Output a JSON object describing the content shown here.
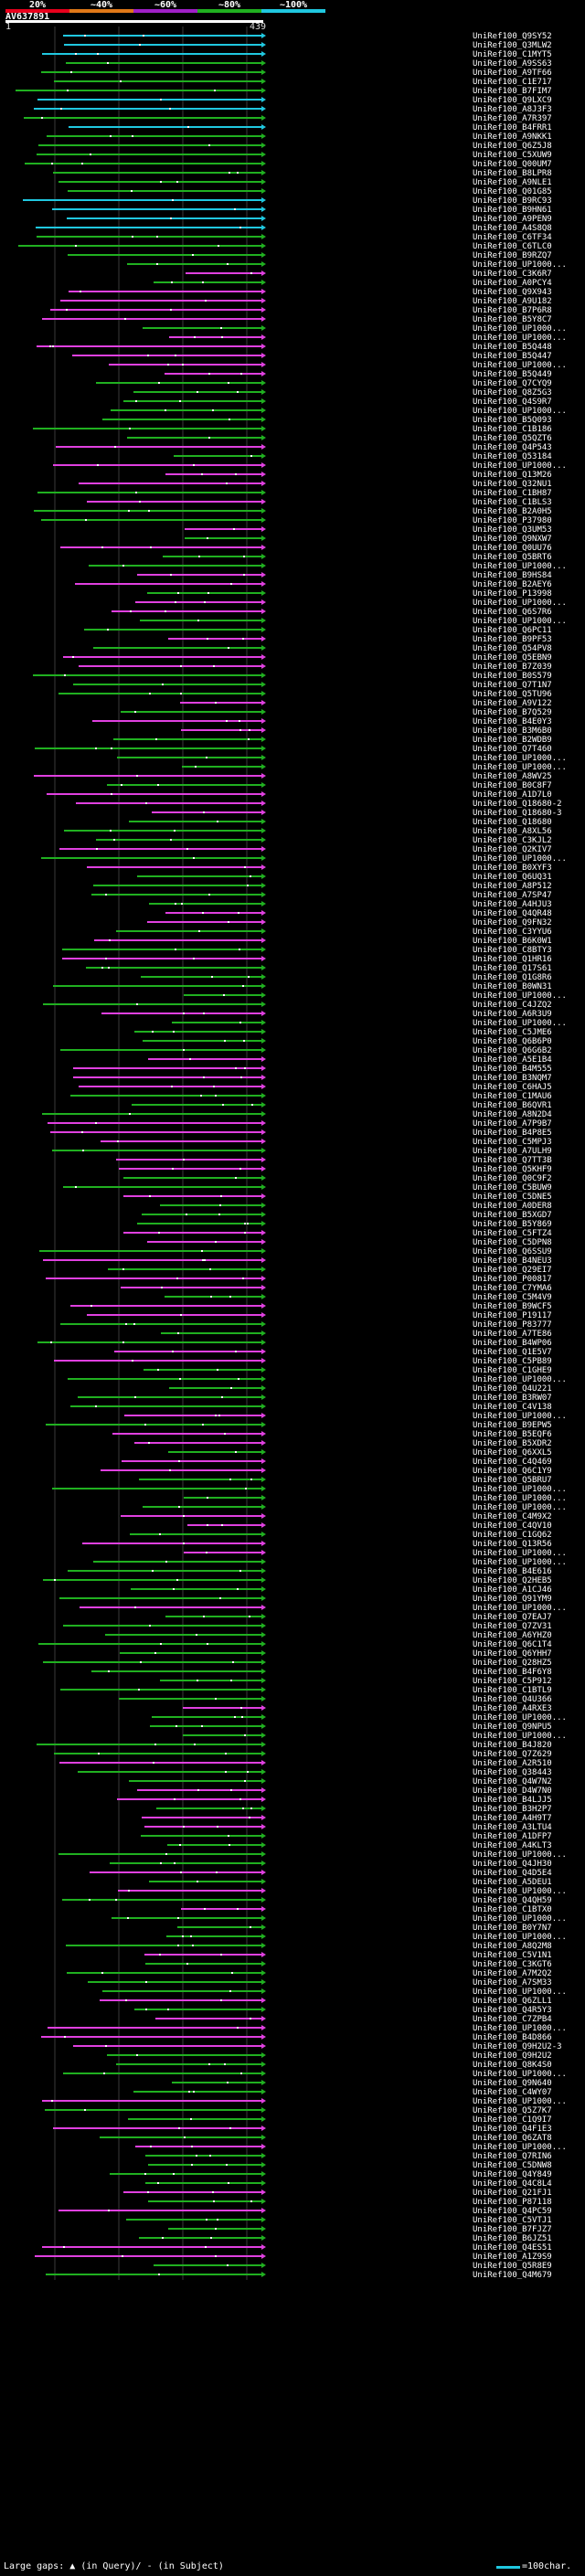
{
  "header": {
    "query_id": "AV637891",
    "axis_start": "1",
    "query_length": "439",
    "color_scale": [
      {
        "label": "20%",
        "color": "#e8001c"
      },
      {
        "label": "~40%",
        "color": "#e07818"
      },
      {
        "label": "~60%",
        "color": "#a020c8"
      },
      {
        "label": "~80%",
        "color": "#20b020"
      },
      {
        "label": "~100%",
        "color": "#20c8e0"
      }
    ]
  },
  "colors": {
    "bar_colors": {
      "cyan": "#20c8e0",
      "green": "#20b020",
      "magenta": "#e040e0"
    },
    "dot_color": "#ffffff",
    "grid_color": "#3a3a3a",
    "query_bar_color": "#ffffff"
  },
  "hit_labels": [
    "UniRef100_Q9SY52",
    "UniRef100_Q3MLW2",
    "UniRef100_C1MYT5",
    "UniRef100_A9SS63",
    "UniRef100_A9TF66",
    "UniRef100_C1E717",
    "UniRef100_B7FIM7",
    "UniRef100_Q9LXC9",
    "UniRef100_A8J3F3",
    "UniRef100_A7R397",
    "UniRef100_B4FRR1",
    "UniRef100_A9NKK1",
    "UniRef100_Q6Z5J8",
    "UniRef100_C5XUW9",
    "UniRef100_Q00UM7",
    "UniRef100_B8LPR8",
    "UniRef100_A9NLE1",
    "UniRef100_Q01G85",
    "UniRef100_B9RC93",
    "UniRef100_B9HN61",
    "UniRef100_A9PEN9",
    "UniRef100_A4S8Q8",
    "UniRef100_C6TF34",
    "UniRef100_C6TLC0",
    "UniRef100_B9RZQ7",
    "UniRef100_UP1000...",
    "UniRef100_C3K6R7",
    "UniRef100_A0PCY4",
    "UniRef100_Q9X943",
    "UniRef100_A9U182",
    "UniRef100_B7P6R8",
    "UniRef100_B5Y8C7",
    "UniRef100_UP1000...",
    "UniRef100_UP1000...",
    "UniRef100_B5Q448",
    "UniRef100_B5Q447",
    "UniRef100_UP1000...",
    "UniRef100_B5Q449",
    "UniRef100_Q7CYQ9",
    "UniRef100_Q8Z5G3",
    "UniRef100_Q4S9R7",
    "UniRef100_UP1000...",
    "UniRef100_B5Q093",
    "UniRef100_C1B186",
    "UniRef100_Q5QZT6",
    "UniRef100_Q4P543",
    "UniRef100_Q53184",
    "UniRef100_UP1000...",
    "UniRef100_Q13M26",
    "UniRef100_Q32NU1",
    "UniRef100_C1BH87",
    "UniRef100_C1BLS3",
    "UniRef100_B2A0H5",
    "UniRef100_P37980",
    "UniRef100_Q3UM53",
    "UniRef100_Q9NXW7",
    "UniRef100_Q0UU76",
    "UniRef100_Q5BRT6",
    "UniRef100_UP1000...",
    "UniRef100_B9HS84",
    "UniRef100_B2AEY6",
    "UniRef100_P13998",
    "UniRef100_UP1000...",
    "UniRef100_Q6S7R6",
    "UniRef100_UP1000...",
    "UniRef100_Q6PC11",
    "UniRef100_B9PF53",
    "UniRef100_Q54PV8",
    "UniRef100_Q5EBN9",
    "UniRef100_B7Z039",
    "UniRef100_B0S579",
    "UniRef100_Q7T1N7",
    "UniRef100_Q5TU96",
    "UniRef100_A9V122",
    "UniRef100_B7Q529",
    "UniRef100_B4E0Y3",
    "UniRef100_B3M6B0",
    "UniRef100_B2WDB9",
    "UniRef100_Q7T460",
    "UniRef100_UP1000...",
    "UniRef100_UP1000...",
    "UniRef100_A8WV25",
    "UniRef100_B0C8F7",
    "UniRef100_A1D7L0",
    "UniRef100_Q18680-2",
    "UniRef100_Q18680-3",
    "UniRef100_Q18680",
    "UniRef100_A8XL56",
    "UniRef100_C3KJL2",
    "UniRef100_Q2KIV7",
    "UniRef100_UP1000...",
    "UniRef100_B0XYF3",
    "UniRef100_Q6UQ31",
    "UniRef100_A8P512",
    "UniRef100_A7SP47",
    "UniRef100_A4HJU3",
    "UniRef100_Q4QR48",
    "UniRef100_Q9FN32",
    "UniRef100_C3YYU6",
    "UniRef100_B6K0W1",
    "UniRef100_C8BTY3",
    "UniRef100_Q1HR16",
    "UniRef100_Q17S61",
    "UniRef100_Q1G8R6",
    "UniRef100_B0WN31",
    "UniRef100_UP1000...",
    "UniRef100_C4JZQ2",
    "UniRef100_A6R3U9",
    "UniRef100_UP1000...",
    "UniRef100_C5JME6",
    "UniRef100_Q6B6P0",
    "UniRef100_Q6G6B2",
    "UniRef100_A5E1B4",
    "UniRef100_B4M555",
    "UniRef100_B3NQM7",
    "UniRef100_C6HAJ5",
    "UniRef100_C1MAU6",
    "UniRef100_B6QVR1",
    "UniRef100_A8N2D4",
    "UniRef100_A7P9B7",
    "UniRef100_B4P8E5",
    "UniRef100_C5MPJ3",
    "UniRef100_A7ULH9",
    "UniRef100_Q7TT3B",
    "UniRef100_Q5KHF9",
    "UniRef100_Q0C9F2",
    "UniRef100_C5BUW9",
    "UniRef100_C5DNE5",
    "UniRef100_A0DER8",
    "UniRef100_B5XGD7",
    "UniRef100_B5Y869",
    "UniRef100_C5FTZ4",
    "UniRef100_C5DPN8",
    "UniRef100_Q6SSU9",
    "UniRef100_B4NEU3",
    "UniRef100_Q29EI7",
    "UniRef100_P00817",
    "UniRef100_C7YMA6",
    "UniRef100_C5M4V9",
    "UniRef100_B9WCF5",
    "UniRef100_P19117",
    "UniRef100_P83777",
    "UniRef100_A7TE86",
    "UniRef100_B4WP06",
    "UniRef100_Q1E5V7",
    "UniRef100_C5PB89",
    "UniRef100_C1GHE9",
    "UniRef100_UP1000...",
    "UniRef100_Q4U221",
    "UniRef100_B3RW07",
    "UniRef100_C4V138",
    "UniRef100_UP1000...",
    "UniRef100_B9EPW5",
    "UniRef100_B5EQF6",
    "UniRef100_B5XDR2",
    "UniRef100_Q6XXL5",
    "UniRef100_C4Q469",
    "UniRef100_Q6C1Y9",
    "UniRef100_Q5BRU7",
    "UniRef100_UP1000...",
    "UniRef100_UP1000...",
    "UniRef100_UP1000...",
    "UniRef100_C4M9X2",
    "UniRef100_C4QV10",
    "UniRef100_C1GQ62",
    "UniRef100_Q13R56",
    "UniRef100_UP1000...",
    "UniRef100_UP1000...",
    "UniRef100_B4E616",
    "UniRef100_Q2HEB5",
    "UniRef100_A1CJ46",
    "UniRef100_Q91YM9",
    "UniRef100_UP1000...",
    "UniRef100_Q7EAJ7",
    "UniRef100_Q7ZV31",
    "UniRef100_A6YHZ0",
    "UniRef100_Q6C1T4",
    "UniRef100_Q6YHH7",
    "UniRef100_Q28HZ5",
    "UniRef100_B4F6Y8",
    "UniRef100_C5P912",
    "UniRef100_C1BTL9",
    "UniRef100_Q4U366",
    "UniRef100_A4RXE3",
    "UniRef100_UP1000...",
    "UniRef100_Q9NPU5",
    "UniRef100_UP1000...",
    "UniRef100_B4J820",
    "UniRef100_Q7Z629",
    "UniRef100_A2R510",
    "UniRef100_Q38443",
    "UniRef100_Q4W7N2",
    "UniRef100_D4W7N0",
    "UniRef100_B4LJJ5",
    "UniRef100_B3H2P7",
    "UniRef100_A4H9T7",
    "UniRef100_A3LTU4",
    "UniRef100_A1DFP7",
    "UniRef100_A4KLT3",
    "UniRef100_UP1000...",
    "UniRef100_Q4JH30",
    "UniRef100_Q4D5E4",
    "UniRef100_A5DEU1",
    "UniRef100_UP1000...",
    "UniRef100_Q4QH59",
    "UniRef100_C1BTX0",
    "UniRef100_UP1000...",
    "UniRef100_B0Y7N7",
    "UniRef100_UP1000...",
    "UniRef100_A8Q2M8",
    "UniRef100_C5V1N1",
    "UniRef100_C3KGT6",
    "UniRef100_A7M2Q2",
    "UniRef100_A7SM33",
    "UniRef100_UP1000...",
    "UniRef100_Q6ZLL1",
    "UniRef100_Q4R5Y3",
    "UniRef100_C7ZPB4",
    "UniRef100_UP1000...",
    "UniRef100_B4D866",
    "UniRef100_Q9H2U2-3",
    "UniRef100_Q9H2U2",
    "UniRef100_Q8K4S0",
    "UniRef100_UP1000...",
    "UniRef100_Q9N640",
    "UniRef100_C4WY07",
    "UniRef100_UP1000...",
    "UniRef100_Q5Z7K7",
    "UniRef100_C1Q9I7",
    "UniRef100_Q4F1E3",
    "UniRef100_Q6ZAT8",
    "UniRef100_UP1000...",
    "UniRef100_Q7RIN6",
    "UniRef100_C5DNW8",
    "UniRef100_Q4Y849",
    "UniRef100_Q4C8L4",
    "UniRef100_Q21FJ1",
    "UniRef100_P87118",
    "UniRef100_Q4PC59",
    "UniRef100_C5VTJ1",
    "UniRef100_B7FJZ7",
    "UniRef100_B6JZ51",
    "UniRef100_Q4ES51",
    "UniRef100_A1Z9S9",
    "UniRef100_Q5R8E9",
    "UniRef100_Q4M679"
  ],
  "legend": {
    "large_gaps_label": "Large gaps:",
    "in_query_label": "(in Query)/",
    "in_subject_label": "(in Subject)",
    "scale_label": "=100char."
  }
}
